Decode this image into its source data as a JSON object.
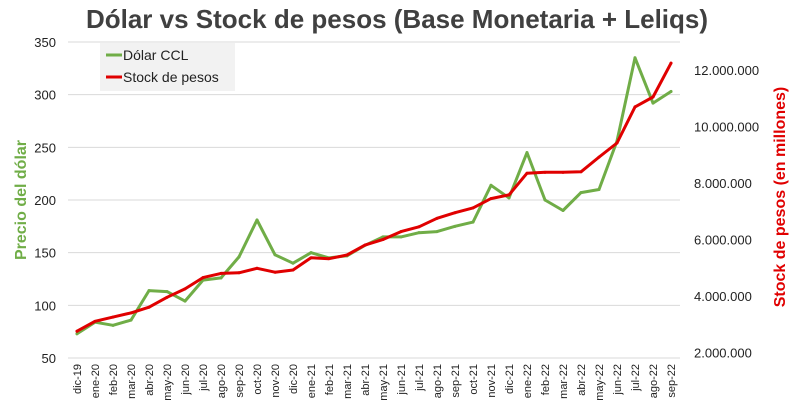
{
  "chart_data": {
    "type": "line",
    "title": "Dólar vs Stock de pesos (Base Monetaria + Leliqs)",
    "categories": [
      "dic-19",
      "ene-20",
      "feb-20",
      "mar-20",
      "abr-20",
      "may-20",
      "jun-20",
      "jul-20",
      "ago-20",
      "sep-20",
      "oct-20",
      "nov-20",
      "dic-20",
      "ene-21",
      "feb-21",
      "mar-21",
      "abr-21",
      "may-21",
      "jun-21",
      "jul-21",
      "ago-21",
      "sep-21",
      "oct-21",
      "nov-21",
      "dic-21",
      "ene-22",
      "feb-22",
      "mar-22",
      "abr-22",
      "may-22",
      "jun-22",
      "jul-22",
      "ago-22",
      "sep-22"
    ],
    "y_left": {
      "label": "Precio del dólar",
      "lim": [
        50,
        350
      ],
      "ticks": [
        "50",
        "100",
        "150",
        "200",
        "250",
        "300",
        "350"
      ],
      "tick_values": [
        50,
        100,
        150,
        200,
        250,
        300,
        350
      ]
    },
    "y_right": {
      "label": "Stock de pesos (en millones)",
      "lim": [
        1800000,
        13000000
      ],
      "ticks": [
        "2.000.000",
        "4.000.000",
        "6.000.000",
        "8.000.000",
        "10.000.000",
        "12.000.000"
      ],
      "tick_values": [
        2000000,
        4000000,
        6000000,
        8000000,
        10000000,
        12000000
      ]
    },
    "series": [
      {
        "name": "Dólar CCL",
        "axis": "left",
        "color": "#70ad47",
        "values": [
          73,
          84,
          81,
          86,
          114,
          113,
          104,
          124,
          126,
          146,
          181,
          148,
          140,
          150,
          145,
          147,
          157,
          165,
          165,
          169,
          170,
          175,
          179,
          214,
          202,
          245,
          200,
          190,
          207,
          210,
          256,
          335,
          292,
          303
        ]
      },
      {
        "name": "Stock de pesos",
        "axis": "right",
        "color": "#e00000",
        "values": [
          2750000,
          3100000,
          3250000,
          3400000,
          3600000,
          3950000,
          4250000,
          4650000,
          4800000,
          4820000,
          4980000,
          4840000,
          4920000,
          5350000,
          5320000,
          5450000,
          5800000,
          6000000,
          6280000,
          6450000,
          6750000,
          6950000,
          7120000,
          7450000,
          7580000,
          8350000,
          8380000,
          8380000,
          8400000,
          8920000,
          9420000,
          10700000,
          11050000,
          12250000
        ]
      }
    ],
    "grid": true,
    "legend": "top-left"
  }
}
